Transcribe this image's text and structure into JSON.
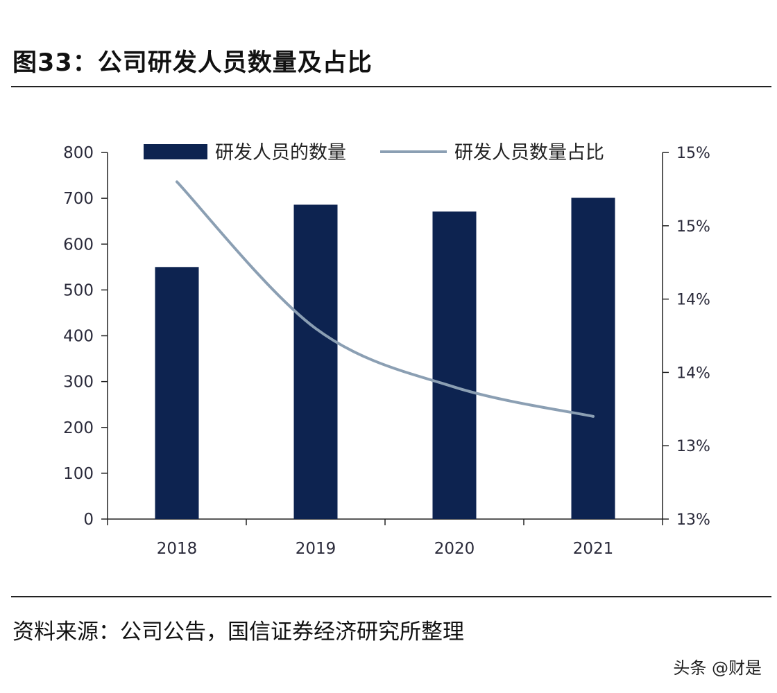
{
  "figure": {
    "title": "图33：公司研发人员数量及占比",
    "source": "资料来源：公司公告，国信证券经济研究所整理",
    "watermark": "头条 @财是"
  },
  "colors": {
    "bar": "#0d2350",
    "line": "#8b9fb3",
    "axis": "#222222"
  },
  "chart_data": {
    "type": "bar",
    "title": "",
    "categories": [
      "2018",
      "2019",
      "2020",
      "2021"
    ],
    "series": [
      {
        "name": "研发人员的数量",
        "type": "bar",
        "axis": "left",
        "values": [
          550,
          686,
          671,
          701
        ]
      },
      {
        "name": "研发人员数量占比",
        "type": "line",
        "axis": "right",
        "values": [
          15.3,
          14.3,
          13.9,
          13.7
        ]
      }
    ],
    "ylim": [
      0,
      800
    ],
    "yticks": [
      0,
      100,
      200,
      300,
      400,
      500,
      600,
      700,
      800
    ],
    "y2lim": [
      13,
      15.5
    ],
    "y2ticks": [
      13,
      13.5,
      14,
      14.5,
      15,
      15.5
    ],
    "y2ticklabels": [
      "13%",
      "13%",
      "14%",
      "14%",
      "15%",
      "15%"
    ],
    "xlabel": "",
    "ylabel": "",
    "legend": "top-center",
    "grid": false
  }
}
